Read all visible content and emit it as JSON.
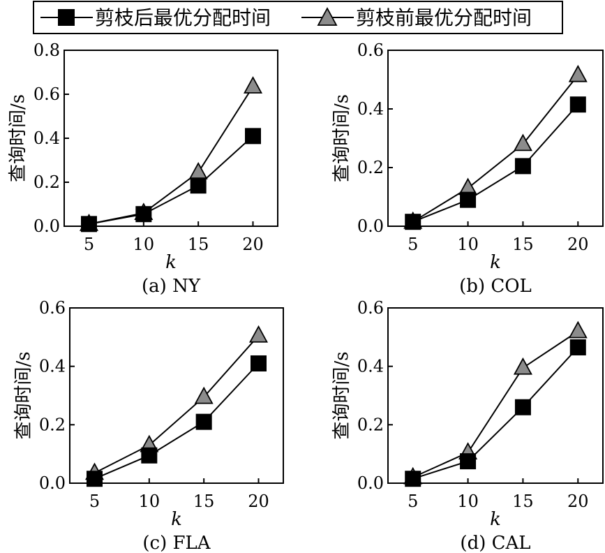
{
  "legend": {
    "items": [
      {
        "label": "剪枝后最优分配时间",
        "marker": "square",
        "fill": "#000000"
      },
      {
        "label": "剪枝前最优分配时间",
        "marker": "triangle",
        "fill": "#8c8c8c"
      }
    ]
  },
  "chart_data": [
    {
      "type": "line",
      "caption": "(a) NY",
      "xlabel": "k",
      "ylabel": "查询时间/s",
      "x": [
        5,
        10,
        15,
        20
      ],
      "xticks": [
        "5",
        "10",
        "15",
        "20"
      ],
      "ylim": [
        0,
        0.8
      ],
      "yticks": [
        "0.0",
        "0.2",
        "0.4",
        "0.6",
        "0.8"
      ],
      "grid": false,
      "series": [
        {
          "name": "剪枝后最优分配时间",
          "marker": "square",
          "values": [
            0.01,
            0.055,
            0.185,
            0.41
          ]
        },
        {
          "name": "剪枝前最优分配时间",
          "marker": "triangle",
          "values": [
            0.01,
            0.06,
            0.245,
            0.635
          ]
        }
      ]
    },
    {
      "type": "line",
      "caption": "(b) COL",
      "xlabel": "k",
      "ylabel": "查询时间/s",
      "x": [
        5,
        10,
        15,
        20
      ],
      "xticks": [
        "5",
        "10",
        "15",
        "20"
      ],
      "ylim": [
        0,
        0.6
      ],
      "yticks": [
        "0.0",
        "0.2",
        "0.4",
        "0.6"
      ],
      "grid": false,
      "series": [
        {
          "name": "剪枝后最优分配时间",
          "marker": "square",
          "values": [
            0.015,
            0.09,
            0.205,
            0.415
          ]
        },
        {
          "name": "剪枝前最优分配时间",
          "marker": "triangle",
          "values": [
            0.015,
            0.13,
            0.28,
            0.515
          ]
        }
      ]
    },
    {
      "type": "line",
      "caption": "(c) FLA",
      "xlabel": "k",
      "ylabel": "查询时间/s",
      "x": [
        5,
        10,
        15,
        20
      ],
      "xticks": [
        "5",
        "10",
        "15",
        "20"
      ],
      "ylim": [
        0,
        0.6
      ],
      "yticks": [
        "0.0",
        "0.2",
        "0.4",
        "0.6"
      ],
      "grid": false,
      "series": [
        {
          "name": "剪枝后最优分配时间",
          "marker": "square",
          "values": [
            0.015,
            0.095,
            0.21,
            0.41
          ]
        },
        {
          "name": "剪枝前最优分配时间",
          "marker": "triangle",
          "values": [
            0.035,
            0.13,
            0.295,
            0.505
          ]
        }
      ]
    },
    {
      "type": "line",
      "caption": "(d) CAL",
      "xlabel": "k",
      "ylabel": "查询时间/s",
      "x": [
        5,
        10,
        15,
        20
      ],
      "xticks": [
        "5",
        "10",
        "15",
        "20"
      ],
      "ylim": [
        0,
        0.6
      ],
      "yticks": [
        "0.0",
        "0.2",
        "0.4",
        "0.6"
      ],
      "grid": false,
      "series": [
        {
          "name": "剪枝后最优分配时间",
          "marker": "square",
          "values": [
            0.015,
            0.075,
            0.26,
            0.465
          ]
        },
        {
          "name": "剪枝前最优分配时间",
          "marker": "triangle",
          "values": [
            0.02,
            0.105,
            0.395,
            0.52
          ]
        }
      ]
    }
  ]
}
